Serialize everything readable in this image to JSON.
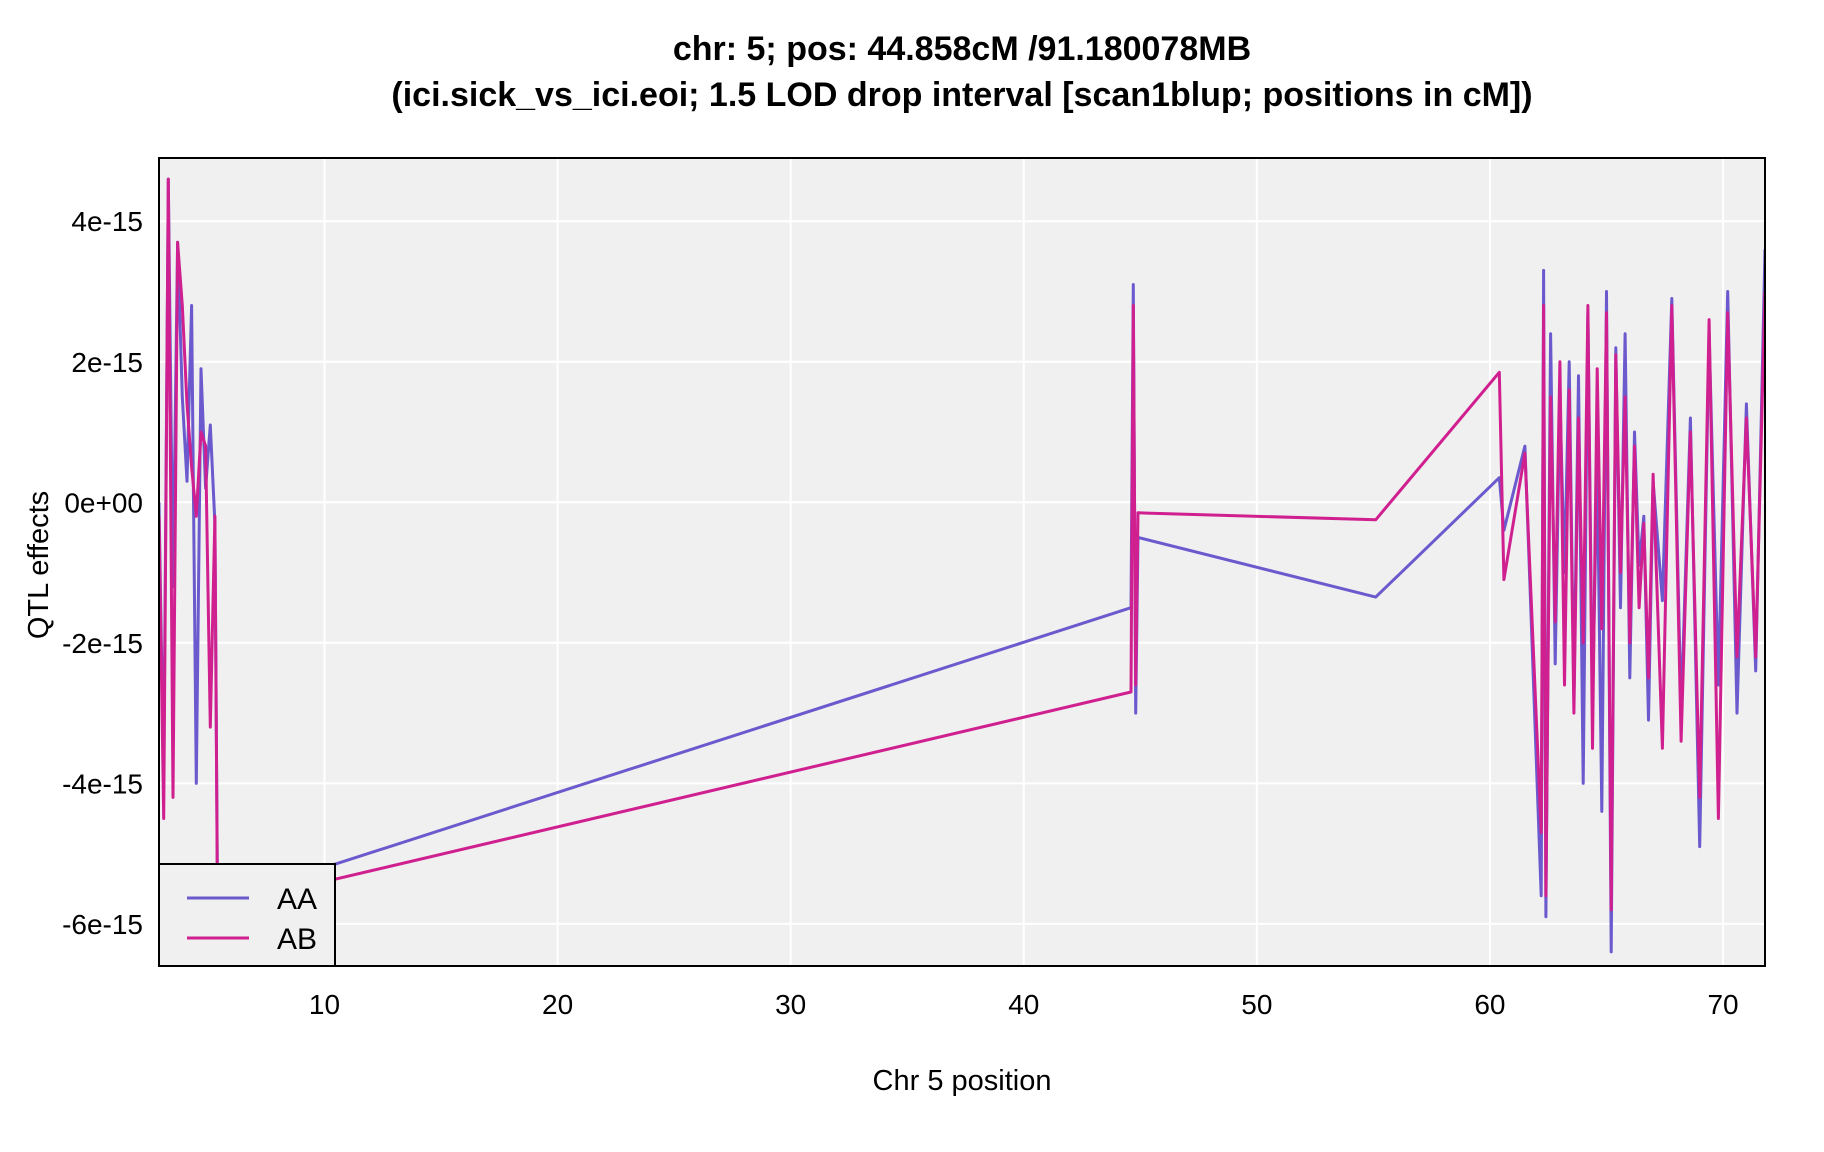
{
  "chart_data": {
    "type": "line",
    "title": "chr: 5; pos: 44.858cM /91.180078MB",
    "subtitle": "(ici.sick_vs_ici.eoi; 1.5 LOD drop interval [scan1blup; positions in cM])",
    "xlabel": "Chr 5 position",
    "ylabel": "QTL effects",
    "xlim": [
      2.9,
      71.8
    ],
    "ylim": [
      -6.6e-15,
      4.9e-15
    ],
    "x_ticks": [
      10,
      20,
      30,
      40,
      50,
      60,
      70
    ],
    "x_tick_labels": [
      "10",
      "20",
      "30",
      "40",
      "50",
      "60",
      "70"
    ],
    "y_ticks": [
      4e-15,
      2e-15,
      0,
      -2e-15,
      -4e-15,
      -6e-15
    ],
    "y_tick_labels": [
      "4e-15",
      "2e-15",
      "0e+00",
      "-2e-15",
      "-4e-15",
      "-6e-15"
    ],
    "grid": true,
    "legend_position": "bottom-left",
    "series": [
      {
        "name": "AA",
        "color": "#6a5acd",
        "x": [
          2.9,
          3.1,
          3.3,
          3.5,
          3.7,
          3.9,
          4.1,
          4.3,
          4.5,
          4.7,
          4.9,
          5.1,
          5.3,
          5.4,
          10.0,
          44.6,
          44.7,
          44.8,
          44.9,
          55.1,
          60.4,
          60.6,
          61.5,
          62.2,
          62.3,
          62.4,
          62.6,
          62.8,
          63.0,
          63.2,
          63.4,
          63.6,
          63.8,
          64.0,
          64.2,
          64.4,
          64.6,
          64.8,
          65.0,
          65.2,
          65.4,
          65.6,
          65.8,
          66.0,
          66.2,
          66.4,
          66.6,
          66.8,
          67.0,
          67.4,
          67.8,
          68.2,
          68.6,
          69.0,
          69.4,
          69.8,
          70.2,
          70.6,
          71.0,
          71.4,
          71.8
        ],
        "y": [
          0,
          -4e-15,
          4.6e-15,
          -1.2e-15,
          3.7e-15,
          1.5e-15,
          3e-16,
          2.8e-15,
          -4e-15,
          1.9e-15,
          2e-16,
          1.1e-15,
          -3e-16,
          -5.2e-15,
          -5.2e-15,
          -1.5e-15,
          3.1e-15,
          -3e-15,
          -5e-16,
          -1.35e-15,
          3.5e-16,
          -4e-16,
          8e-16,
          -5.6e-15,
          3.3e-15,
          -5.9e-15,
          2.4e-15,
          -2.3e-15,
          1.5e-15,
          -1e-15,
          2e-15,
          -2.8e-15,
          1.8e-15,
          -4e-15,
          2.7e-15,
          -2.9e-15,
          6e-16,
          -4.4e-15,
          3e-15,
          -6.4e-15,
          2.2e-15,
          -1.5e-15,
          2.4e-15,
          -2.5e-15,
          1e-15,
          -9e-16,
          -2e-16,
          -3.1e-15,
          3e-16,
          -1.4e-15,
          2.9e-15,
          -3e-15,
          1.2e-15,
          -4.9e-15,
          2.4e-15,
          -2.6e-15,
          3e-15,
          -3e-15,
          1.4e-15,
          -2.4e-15,
          3.6e-15
        ]
      },
      {
        "name": "AB",
        "color": "#d02090",
        "x": [
          2.9,
          3.1,
          3.3,
          3.5,
          3.7,
          3.9,
          4.1,
          4.3,
          4.5,
          4.7,
          4.9,
          5.1,
          5.3,
          5.4,
          10.0,
          44.6,
          44.7,
          44.8,
          44.9,
          55.1,
          60.4,
          60.6,
          61.5,
          62.2,
          62.3,
          62.4,
          62.6,
          62.8,
          63.0,
          63.2,
          63.4,
          63.6,
          63.8,
          64.0,
          64.2,
          64.4,
          64.6,
          64.8,
          65.0,
          65.2,
          65.4,
          65.6,
          65.8,
          66.0,
          66.2,
          66.4,
          66.6,
          66.8,
          67.0,
          67.4,
          67.8,
          68.2,
          68.6,
          69.0,
          69.4,
          69.8,
          70.2,
          70.6,
          71.0,
          71.4,
          71.8
        ],
        "y": [
          -2e-16,
          -4.5e-15,
          4.6e-15,
          -4.2e-15,
          3.7e-15,
          2.8e-15,
          1.4e-15,
          5e-16,
          -2e-16,
          1e-15,
          8e-16,
          -3.2e-15,
          -2e-16,
          -5.4e-15,
          -5.4e-15,
          -2.7e-15,
          2.8e-15,
          -2.6e-15,
          -1.5e-16,
          -2.5e-16,
          1.85e-15,
          -1.1e-15,
          7e-16,
          -4.7e-15,
          2.8e-15,
          -5.6e-15,
          1.5e-15,
          -1.7e-15,
          2e-15,
          -2.6e-15,
          1.6e-15,
          -3e-15,
          1.2e-15,
          -2e-15,
          2.8e-15,
          -3.5e-15,
          1.9e-15,
          -1.8e-15,
          2.7e-15,
          -5.8e-15,
          2.1e-15,
          -1e-15,
          1.5e-15,
          -2e-15,
          8e-16,
          -1.5e-15,
          -3e-16,
          -2.5e-15,
          4e-16,
          -3.5e-15,
          2.8e-15,
          -3.4e-15,
          1e-15,
          -4.2e-15,
          2.6e-15,
          -4.5e-15,
          2.7e-15,
          -2.2e-15,
          1.2e-15,
          -2.2e-15,
          3e-15
        ]
      }
    ]
  }
}
